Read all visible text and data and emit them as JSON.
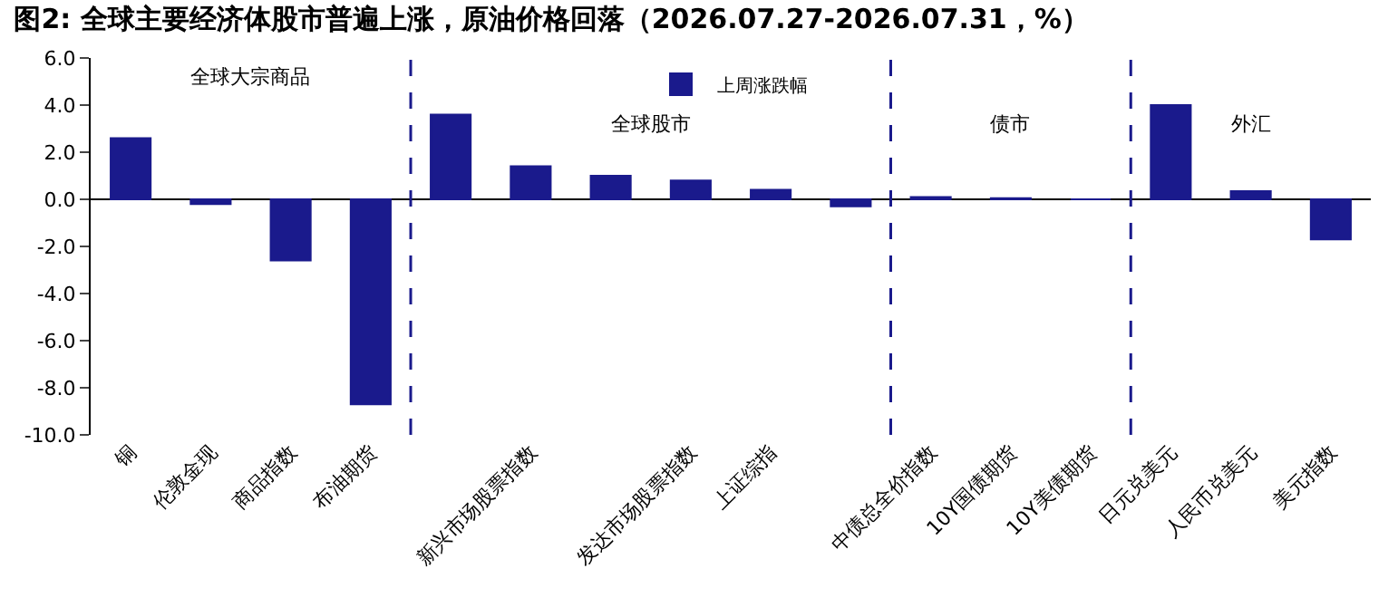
{
  "chart_data": {
    "type": "bar",
    "title": "图2: 全球主要经济体股市普遍上涨，原油价格回落（2026.07.27-2026.07.31，%）",
    "categories": [
      "铜",
      "伦敦金现",
      "商品指数",
      "布油期货",
      null,
      "新兴市场股票指数",
      null,
      "发达市场股票指数",
      "上证综指",
      null,
      "中债总全价指数",
      "10Y国债期货",
      "10Y美债期货",
      "日元兑美元",
      "人民币兑美元",
      "美元指数"
    ],
    "series": [
      {
        "name": "上周涨跌幅",
        "color": "#1a1a8c",
        "values": [
          2.6,
          -0.2,
          -2.6,
          -8.7,
          3.6,
          1.4,
          1.0,
          0.8,
          0.4,
          -0.3,
          0.1,
          0.05,
          0.0,
          4.0,
          0.35,
          -1.7
        ]
      }
    ],
    "ylim": [
      -10,
      6
    ],
    "yticks": [
      {
        "value": -10,
        "label": "-10.0"
      },
      {
        "value": -8,
        "label": "-8.0"
      },
      {
        "value": -6,
        "label": "-6.0"
      },
      {
        "value": -4,
        "label": "-4.0"
      },
      {
        "value": -2,
        "label": "-2.0"
      },
      {
        "value": 0,
        "label": "0.0"
      },
      {
        "value": 2,
        "label": "2.0"
      },
      {
        "value": 4,
        "label": "4.0"
      },
      {
        "value": 6,
        "label": "6.0"
      }
    ],
    "annotations": [
      "全球大宗商品",
      "全球股市",
      "债市",
      "外汇"
    ],
    "legend": "top"
  }
}
